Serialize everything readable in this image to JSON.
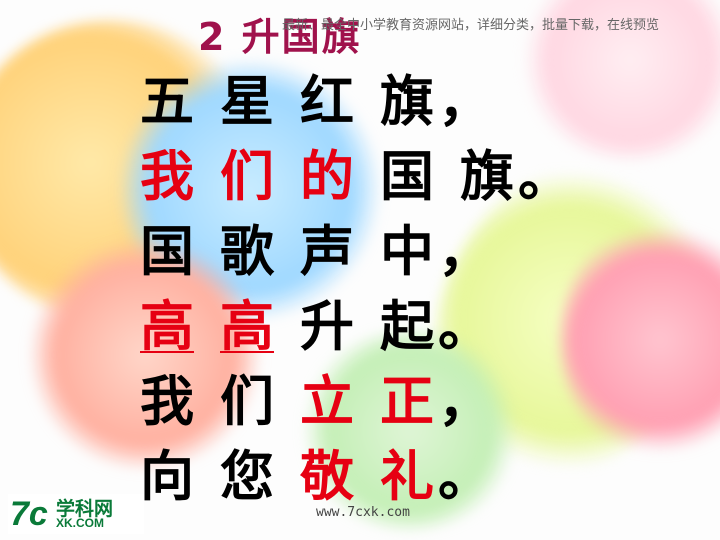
{
  "title": "2 升国旗",
  "banner": "最新、最全中小学教育资源网站，详细分类，批量下载，在线预览",
  "poem": {
    "lines": [
      [
        "五",
        "星",
        "红",
        "旗",
        "，"
      ],
      [
        "我",
        "们",
        "的",
        "国",
        "旗",
        "。"
      ],
      [
        "国",
        "歌",
        "声",
        "中",
        "，"
      ],
      [
        "高",
        "高",
        "升",
        "起",
        "。"
      ],
      [
        "我",
        "们",
        "立",
        "正",
        "，"
      ],
      [
        "向",
        "您",
        "敬",
        "礼",
        "。"
      ]
    ]
  },
  "logo": {
    "mark": "7c",
    "name_cn": "学科网",
    "name_en": "XK.COM"
  },
  "website": "www.7cxk.com",
  "colors": {
    "title": "#a0124c",
    "highlight": "#e60012",
    "text": "#000000"
  }
}
